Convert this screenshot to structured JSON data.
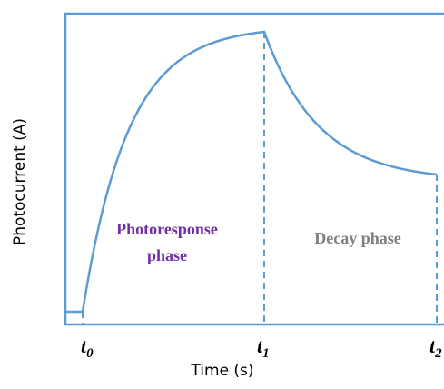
{
  "axes": {
    "y_label": "Photocurrent (A)",
    "x_label": "Time (s)"
  },
  "time_marks": [
    {
      "symbol": "t",
      "index": "0"
    },
    {
      "symbol": "t",
      "index": "1"
    },
    {
      "symbol": "t",
      "index": "2"
    }
  ],
  "phases": {
    "photoresponse": [
      "Photoresponse",
      "phase"
    ],
    "decay": "Decay phase"
  }
}
